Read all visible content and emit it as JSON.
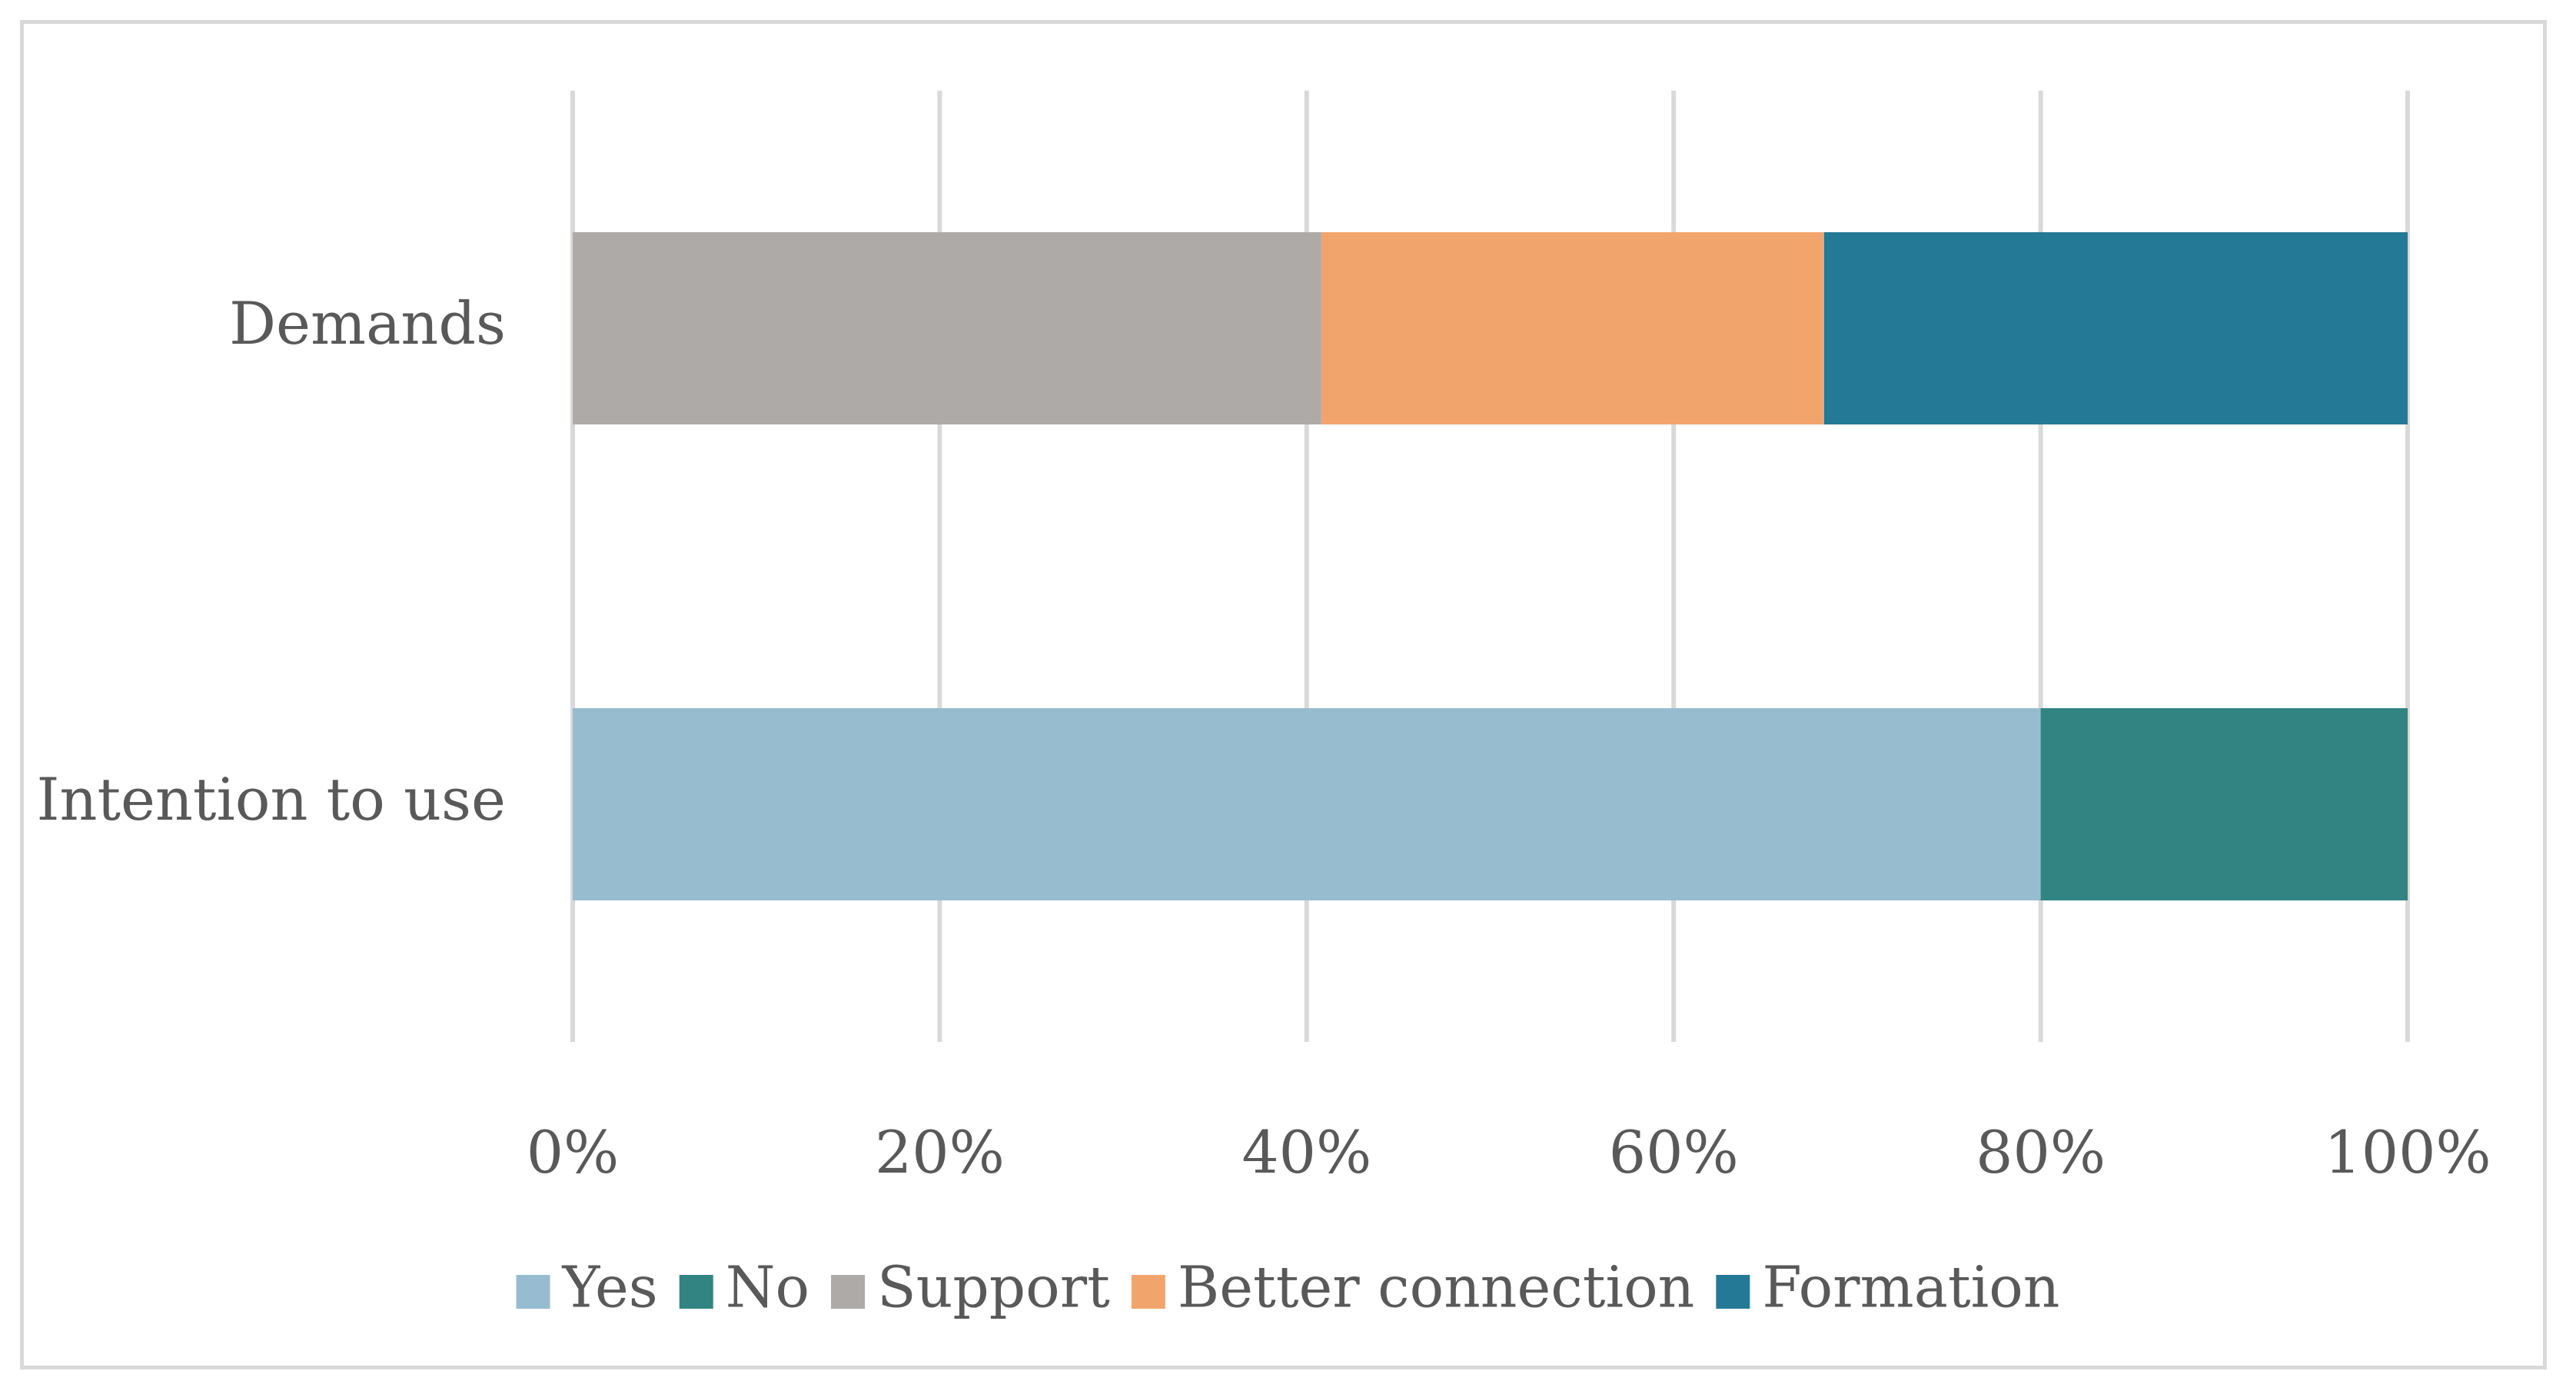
{
  "chart_data": {
    "type": "bar",
    "orientation": "horizontal",
    "stacked": "percent",
    "categories": [
      "Demands",
      "Intention to use"
    ],
    "series": [
      {
        "name": "Yes",
        "color": "#97BCD0",
        "values": [
          0,
          80
        ]
      },
      {
        "name": "No",
        "color": "#318482",
        "values": [
          0,
          20
        ]
      },
      {
        "name": "Support",
        "color": "#ADAAA8",
        "values": [
          40.8,
          0
        ]
      },
      {
        "name": "Better connection",
        "color": "#F2A46D",
        "values": [
          27.4,
          0
        ]
      },
      {
        "name": "Formation",
        "color": "#247996",
        "values": [
          31.8,
          0
        ]
      }
    ],
    "x_ticks": [
      "0%",
      "20%",
      "40%",
      "60%",
      "80%",
      "100%"
    ],
    "xlim": [
      0,
      100
    ],
    "grid": true,
    "legend": "bottom"
  }
}
